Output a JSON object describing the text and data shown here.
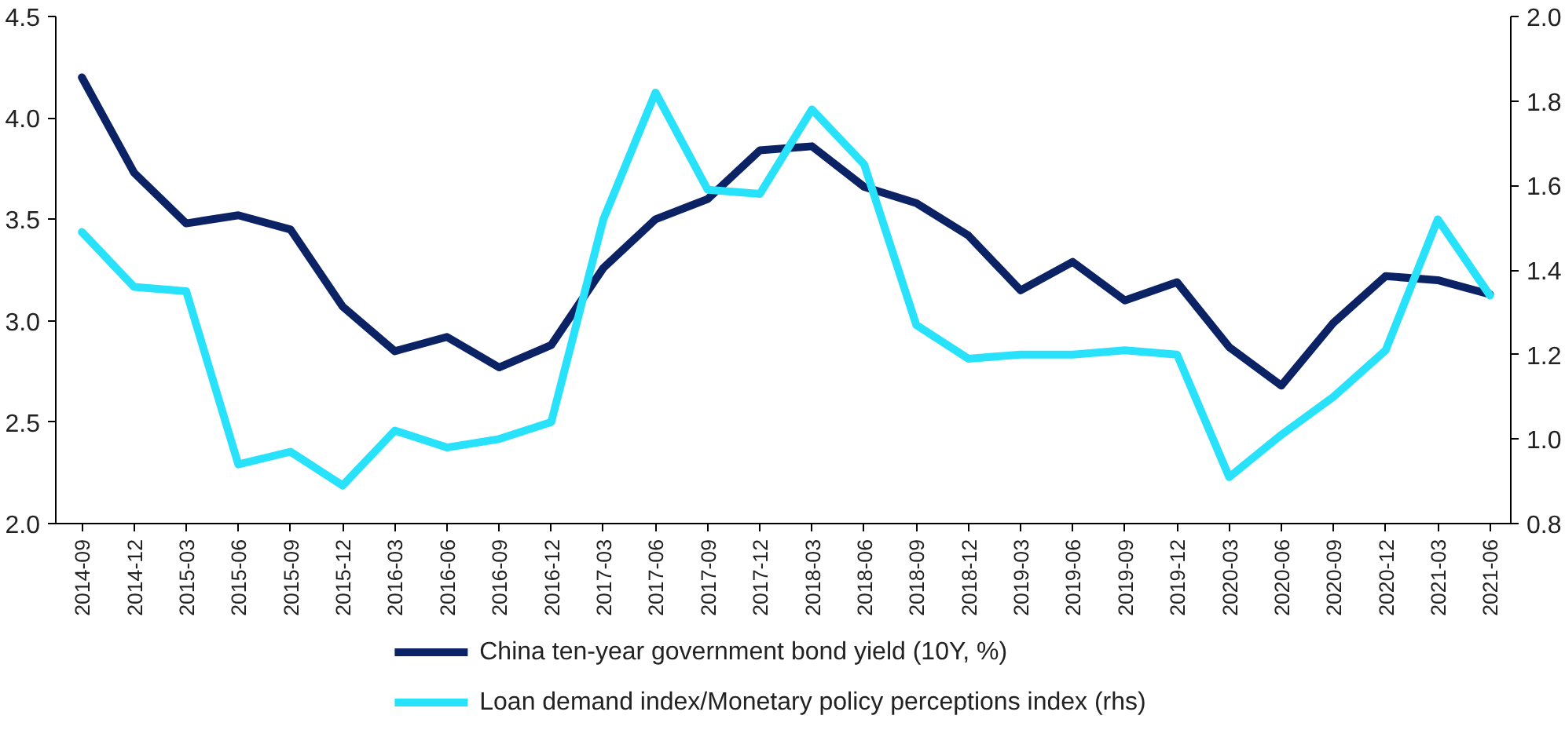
{
  "chart_data": {
    "type": "line",
    "categories": [
      "2014-09",
      "2014-12",
      "2015-03",
      "2015-06",
      "2015-09",
      "2015-12",
      "2016-03",
      "2016-06",
      "2016-09",
      "2016-12",
      "2017-03",
      "2017-06",
      "2017-09",
      "2017-12",
      "2018-03",
      "2018-06",
      "2018-09",
      "2018-12",
      "2019-03",
      "2019-06",
      "2019-09",
      "2019-12",
      "2020-03",
      "2020-06",
      "2020-09",
      "2020-12",
      "2021-03",
      "2021-06"
    ],
    "series": [
      {
        "name": "China ten-year government bond yield (10Y, %)",
        "color": "#0b2265",
        "values": [
          4.2,
          3.73,
          3.48,
          3.52,
          3.45,
          3.07,
          2.85,
          2.92,
          2.77,
          2.88,
          3.26,
          3.5,
          3.6,
          3.84,
          3.86,
          3.66,
          3.58,
          3.42,
          3.15,
          3.29,
          3.1,
          3.19,
          2.87,
          2.68,
          2.99,
          3.22,
          3.2,
          3.13
        ]
      },
      {
        "name": "Loan demand index/Monetary policy perceptions index (rhs)",
        "color": "#28e2fb",
        "axis": "y2",
        "values": [
          1.49,
          1.36,
          1.35,
          0.94,
          0.97,
          0.89,
          1.02,
          0.98,
          1.0,
          1.04,
          1.52,
          1.82,
          1.59,
          1.58,
          1.78,
          1.65,
          1.27,
          1.19,
          1.2,
          1.2,
          1.21,
          1.2,
          0.91,
          1.01,
          1.1,
          1.21,
          1.52,
          1.34
        ]
      }
    ],
    "ylim": [
      2.0,
      4.5
    ],
    "yticks": [
      {
        "value": 2.0,
        "label": "2.0"
      },
      {
        "value": 2.5,
        "label": "2.5"
      },
      {
        "value": 3.0,
        "label": "3.0"
      },
      {
        "value": 3.5,
        "label": "3.5"
      },
      {
        "value": 4.0,
        "label": "4.0"
      },
      {
        "value": 4.5,
        "label": "4.5"
      }
    ],
    "y2lim": [
      0.8,
      2.0
    ],
    "y2ticks": [
      {
        "value": 0.8,
        "label": "0.8"
      },
      {
        "value": 1.0,
        "label": "1.0"
      },
      {
        "value": 1.2,
        "label": "1.2"
      },
      {
        "value": 1.4,
        "label": "1.4"
      },
      {
        "value": 1.6,
        "label": "1.6"
      },
      {
        "value": 1.8,
        "label": "1.8"
      },
      {
        "value": 2.0,
        "label": "2.0"
      }
    ],
    "grid": false,
    "legend": "bottom",
    "line_style": "solid"
  }
}
